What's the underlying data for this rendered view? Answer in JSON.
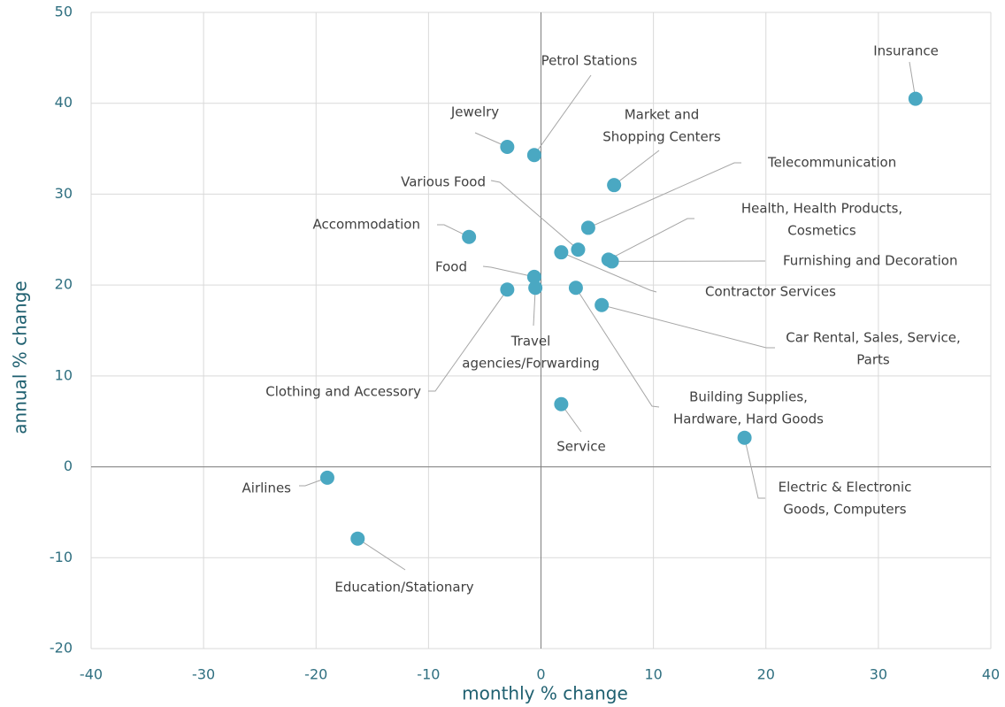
{
  "chart_data": {
    "type": "scatter",
    "x_label": "monthly % change",
    "y_label": "annual % change",
    "color": "#4aa8c2",
    "grid": true,
    "xlim": [
      -40,
      40
    ],
    "xticks": [
      -40,
      -30,
      -20,
      -10,
      0,
      10,
      20,
      30,
      40
    ],
    "ylim": [
      -20,
      50
    ],
    "yticks": [
      -20,
      -10,
      0,
      10,
      20,
      30,
      40,
      50
    ],
    "labels": [
      [
        "Insurance"
      ],
      [
        "Petrol Stations"
      ],
      [
        "Jewelry"
      ],
      [
        "Market and",
        "Shopping Centers"
      ],
      [
        "Telecommunication"
      ],
      [
        "Various Food"
      ],
      [
        "Accommodation"
      ],
      [
        "Health, Health Products,",
        "Cosmetics"
      ],
      [
        "Furnishing and Decoration"
      ],
      [
        "Contractor Services"
      ],
      [
        "Food"
      ],
      [
        "Clothing and Accessory"
      ],
      [
        "Travel",
        "agencies/Forwarding"
      ],
      [
        "Building Supplies,",
        "Hardware, Hard Goods"
      ],
      [
        "Car Rental, Sales, Service,",
        "Parts"
      ],
      [
        "Service"
      ],
      [
        "Electric & Electronic",
        "Goods, Computers"
      ],
      [
        "Airlines"
      ],
      [
        "Education/Stationary"
      ]
    ],
    "x": [
      33.3,
      -0.6,
      -3.0,
      6.5,
      4.2,
      3.3,
      -6.4,
      6.0,
      6.3,
      1.8,
      -0.6,
      -3.0,
      -0.5,
      3.1,
      5.4,
      1.8,
      18.1,
      -19.0,
      -16.3
    ],
    "y": [
      40.5,
      34.3,
      35.2,
      31.0,
      26.3,
      23.9,
      25.3,
      22.8,
      22.6,
      23.6,
      20.9,
      19.5,
      19.7,
      19.7,
      17.8,
      6.9,
      3.2,
      -1.2,
      -7.9
    ]
  }
}
